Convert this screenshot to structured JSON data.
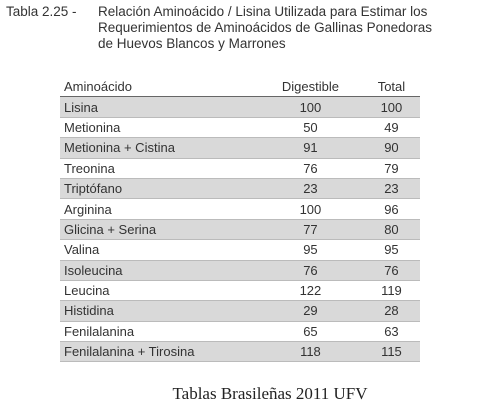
{
  "caption": {
    "label": "Tabla 2.25 -",
    "title_lines": [
      "Relación Aminoácido / Lisina Utilizada para Estimar los",
      "Requerimientos de Aminoácidos de Gallinas Ponedoras",
      "de Huevos Blancos y Marrones"
    ]
  },
  "table": {
    "header": [
      "Aminoácido",
      "Digestible",
      "Total"
    ],
    "rows": [
      [
        "Lisina",
        100,
        100
      ],
      [
        "Metionina",
        50,
        49
      ],
      [
        "Metionina + Cistina",
        91,
        90
      ],
      [
        "Treonina",
        76,
        79
      ],
      [
        "Triptófano",
        23,
        23
      ],
      [
        "Arginina",
        100,
        96
      ],
      [
        "Glicina + Serina",
        77,
        80
      ],
      [
        "Valina",
        95,
        95
      ],
      [
        "Isoleucina",
        76,
        76
      ],
      [
        "Leucina",
        122,
        119
      ],
      [
        "Histidina",
        29,
        28
      ],
      [
        "Fenilalanina",
        65,
        63
      ],
      [
        "Fenilalanina + Tirosina",
        118,
        115
      ]
    ]
  },
  "footer": "Tablas Brasileñas 2011 UFV"
}
